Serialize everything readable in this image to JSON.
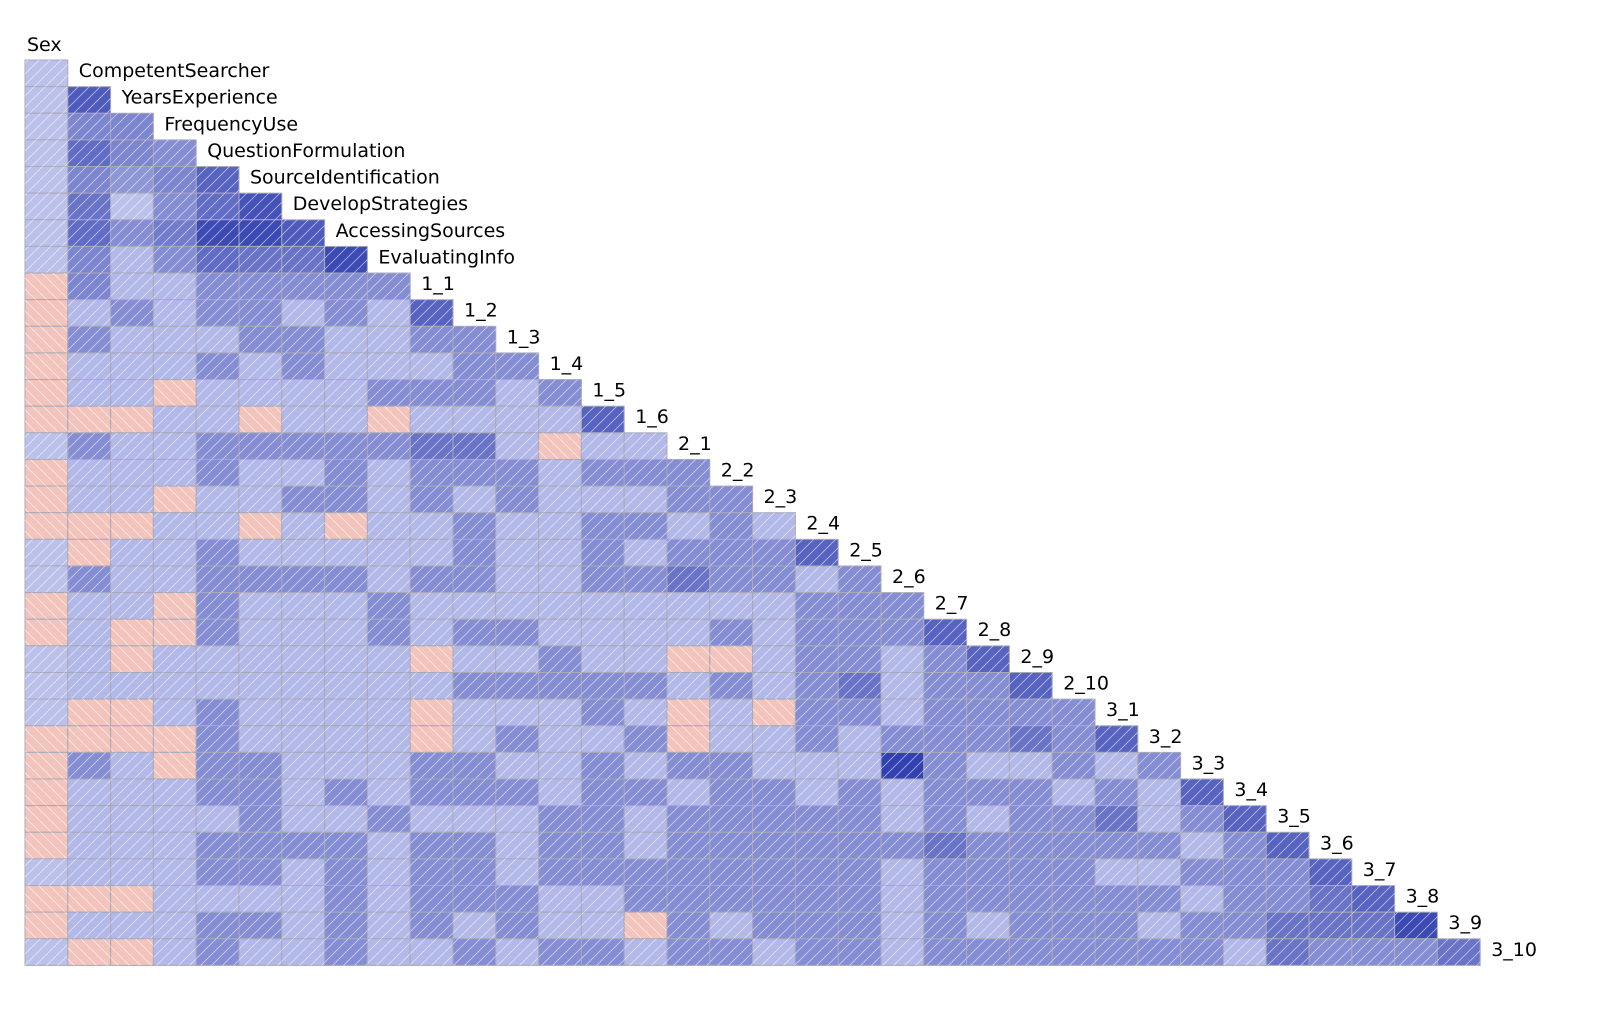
{
  "chart_data": {
    "type": "heatmap",
    "variables": [
      "Sex",
      "CompetentSearcher",
      "YearsExperience",
      "FrequencyUse",
      "QuestionFormulation",
      "SourceIdentification",
      "DevelopStrategies",
      "AccessingSources",
      "EvaluatingInfo",
      "1_1",
      "1_2",
      "1_3",
      "1_4",
      "1_5",
      "1_6",
      "2_1",
      "2_2",
      "2_3",
      "2_4",
      "2_5",
      "2_6",
      "2_7",
      "2_8",
      "2_9",
      "2_10",
      "3_1",
      "3_2",
      "3_3",
      "3_4",
      "3_5",
      "3_6",
      "3_7",
      "3_8",
      "3_9",
      "3_10"
    ],
    "shape": "lower-triangle",
    "encoding": "shaded correlation matrix: blue = positive, red = negative; darker = stronger",
    "colors": {
      "positive": "#3c52c8",
      "negative": "#f0a898",
      "light_positive": "#c3c8f0",
      "grid": "#a8a8b8"
    },
    "correlations": [
      [
        0.15
      ],
      [
        0.15,
        0.75
      ],
      [
        0.15,
        0.5,
        0.5
      ],
      [
        0.15,
        0.65,
        0.5,
        0.45
      ],
      [
        0.15,
        0.5,
        0.4,
        0.5,
        0.7
      ],
      [
        0.15,
        0.6,
        0.15,
        0.45,
        0.65,
        0.8
      ],
      [
        0.15,
        0.65,
        0.45,
        0.55,
        0.85,
        0.85,
        0.75
      ],
      [
        0.15,
        0.5,
        0.2,
        0.45,
        0.65,
        0.6,
        0.6,
        0.85
      ],
      [
        -0.15,
        0.5,
        0.2,
        0.2,
        0.45,
        0.45,
        0.45,
        0.45,
        0.45
      ],
      [
        -0.15,
        0.2,
        0.45,
        0.2,
        0.45,
        0.45,
        0.2,
        0.45,
        0.2,
        0.7
      ],
      [
        -0.15,
        0.45,
        0.2,
        0.2,
        0.2,
        0.45,
        0.45,
        0.2,
        0.2,
        0.45,
        0.45
      ],
      [
        -0.15,
        0.2,
        0.2,
        0.2,
        0.45,
        0.2,
        0.45,
        0.2,
        0.2,
        0.2,
        0.45,
        0.45
      ],
      [
        -0.15,
        0.2,
        0.2,
        -0.15,
        0.2,
        0.2,
        0.2,
        0.2,
        0.45,
        0.45,
        0.45,
        0.2,
        0.45
      ],
      [
        -0.15,
        -0.15,
        -0.15,
        0.2,
        0.2,
        -0.15,
        0.2,
        0.2,
        -0.15,
        0.2,
        0.2,
        0.2,
        0.2,
        0.7
      ],
      [
        0.15,
        0.45,
        0.2,
        0.2,
        0.45,
        0.45,
        0.45,
        0.45,
        0.45,
        0.6,
        0.6,
        0.2,
        -0.15,
        0.2,
        0.2
      ],
      [
        -0.15,
        0.2,
        0.2,
        0.2,
        0.45,
        0.2,
        0.2,
        0.45,
        0.2,
        0.45,
        0.45,
        0.45,
        0.2,
        0.45,
        0.45,
        0.45
      ],
      [
        -0.15,
        0.2,
        0.2,
        -0.15,
        0.2,
        0.2,
        0.45,
        0.45,
        0.2,
        0.45,
        0.2,
        0.45,
        0.2,
        0.2,
        0.2,
        0.45,
        0.45
      ],
      [
        -0.15,
        -0.15,
        -0.15,
        0.2,
        0.2,
        -0.15,
        0.2,
        -0.15,
        0.2,
        0.2,
        0.45,
        0.2,
        0.2,
        0.45,
        0.45,
        0.2,
        0.45,
        0.2
      ],
      [
        0.15,
        -0.15,
        0.2,
        0.2,
        0.45,
        0.2,
        0.2,
        0.2,
        0.2,
        0.2,
        0.45,
        0.2,
        0.2,
        0.45,
        0.2,
        0.45,
        0.45,
        0.45,
        0.7
      ],
      [
        0.15,
        0.45,
        0.2,
        0.2,
        0.45,
        0.45,
        0.45,
        0.45,
        0.2,
        0.45,
        0.45,
        0.2,
        0.2,
        0.45,
        0.45,
        0.6,
        0.45,
        0.45,
        0.2,
        0.45
      ],
      [
        -0.15,
        0.2,
        0.2,
        -0.15,
        0.45,
        0.2,
        0.2,
        0.2,
        0.45,
        0.2,
        0.2,
        0.2,
        0.2,
        0.2,
        0.2,
        0.2,
        0.2,
        0.2,
        0.45,
        0.45,
        0.45
      ],
      [
        -0.15,
        0.2,
        -0.15,
        -0.15,
        0.45,
        0.2,
        0.2,
        0.2,
        0.45,
        0.2,
        0.45,
        0.45,
        0.2,
        0.2,
        0.2,
        0.2,
        0.45,
        0.2,
        0.45,
        0.45,
        0.45,
        0.7
      ],
      [
        0.15,
        0.2,
        -0.15,
        0.2,
        0.2,
        0.2,
        0.2,
        0.2,
        0.2,
        -0.15,
        0.2,
        0.2,
        0.45,
        0.2,
        0.2,
        -0.15,
        -0.15,
        0.2,
        0.45,
        0.45,
        0.2,
        0.45,
        0.7
      ],
      [
        0.15,
        0.2,
        0.2,
        0.2,
        0.2,
        0.2,
        0.2,
        0.2,
        0.2,
        0.2,
        0.45,
        0.45,
        0.45,
        0.45,
        0.45,
        0.2,
        0.45,
        0.2,
        0.45,
        0.6,
        0.2,
        0.45,
        0.45,
        0.7
      ],
      [
        0.15,
        -0.15,
        -0.15,
        0.2,
        0.45,
        0.2,
        0.2,
        0.2,
        0.2,
        -0.15,
        0.2,
        0.2,
        0.2,
        0.45,
        0.2,
        -0.15,
        0.2,
        -0.15,
        0.45,
        0.45,
        0.2,
        0.45,
        0.45,
        0.45,
        0.45
      ],
      [
        -0.15,
        -0.15,
        -0.15,
        -0.15,
        0.45,
        0.2,
        0.2,
        0.2,
        0.2,
        -0.15,
        0.2,
        0.45,
        0.2,
        0.2,
        0.45,
        -0.15,
        0.2,
        0.2,
        0.45,
        0.2,
        0.45,
        0.45,
        0.45,
        0.6,
        0.45,
        0.7
      ],
      [
        -0.15,
        0.45,
        0.2,
        -0.15,
        0.45,
        0.45,
        0.2,
        0.2,
        0.2,
        0.45,
        0.45,
        0.2,
        0.2,
        0.45,
        0.2,
        0.45,
        0.45,
        0.2,
        0.2,
        0.2,
        0.9,
        0.45,
        0.2,
        0.2,
        0.45,
        0.2,
        0.45
      ],
      [
        -0.15,
        0.2,
        0.2,
        0.2,
        0.45,
        0.45,
        0.2,
        0.45,
        0.2,
        0.45,
        0.45,
        0.45,
        0.2,
        0.45,
        0.45,
        0.2,
        0.45,
        0.45,
        0.2,
        0.45,
        0.2,
        0.45,
        0.45,
        0.45,
        0.2,
        0.45,
        0.2,
        0.7
      ],
      [
        -0.15,
        0.2,
        0.2,
        0.2,
        0.2,
        0.45,
        0.2,
        0.2,
        0.45,
        0.2,
        0.2,
        0.2,
        0.45,
        0.45,
        0.2,
        0.45,
        0.45,
        0.45,
        0.45,
        0.45,
        0.2,
        0.45,
        0.2,
        0.45,
        0.45,
        0.6,
        0.2,
        0.45,
        0.7
      ],
      [
        -0.15,
        0.2,
        0.2,
        0.2,
        0.45,
        0.45,
        0.45,
        0.45,
        0.2,
        0.45,
        0.45,
        0.2,
        0.45,
        0.45,
        0.2,
        0.45,
        0.45,
        0.45,
        0.45,
        0.45,
        0.45,
        0.6,
        0.45,
        0.45,
        0.45,
        0.45,
        0.45,
        0.2,
        0.45,
        0.7
      ],
      [
        0.15,
        0.2,
        0.2,
        0.2,
        0.45,
        0.45,
        0.2,
        0.45,
        0.2,
        0.45,
        0.45,
        0.2,
        0.45,
        0.45,
        0.45,
        0.45,
        0.45,
        0.45,
        0.45,
        0.45,
        0.2,
        0.45,
        0.45,
        0.45,
        0.45,
        0.2,
        0.2,
        0.45,
        0.45,
        0.45,
        0.7
      ],
      [
        -0.15,
        -0.15,
        -0.15,
        0.2,
        0.2,
        0.2,
        0.2,
        0.45,
        0.2,
        0.45,
        0.45,
        0.45,
        0.2,
        0.2,
        0.45,
        0.45,
        0.45,
        0.45,
        0.45,
        0.45,
        0.2,
        0.45,
        0.45,
        0.45,
        0.45,
        0.45,
        0.45,
        0.2,
        0.45,
        0.45,
        0.6,
        0.7
      ],
      [
        -0.15,
        0.2,
        0.2,
        0.2,
        0.45,
        0.45,
        0.2,
        0.45,
        0.2,
        0.45,
        0.2,
        0.45,
        0.2,
        0.2,
        -0.15,
        0.45,
        0.2,
        0.45,
        0.45,
        0.45,
        0.2,
        0.45,
        0.2,
        0.45,
        0.45,
        0.45,
        0.2,
        0.45,
        0.45,
        0.6,
        0.6,
        0.6,
        0.85
      ],
      [
        0.15,
        -0.15,
        -0.15,
        0.2,
        0.45,
        0.2,
        0.2,
        0.45,
        0.2,
        0.2,
        0.45,
        0.2,
        0.45,
        0.45,
        0.2,
        0.45,
        0.45,
        0.2,
        0.45,
        0.45,
        0.2,
        0.45,
        0.45,
        0.45,
        0.45,
        0.45,
        0.45,
        0.45,
        0.2,
        0.6,
        0.45,
        0.45,
        0.45,
        0.6
      ]
    ]
  }
}
